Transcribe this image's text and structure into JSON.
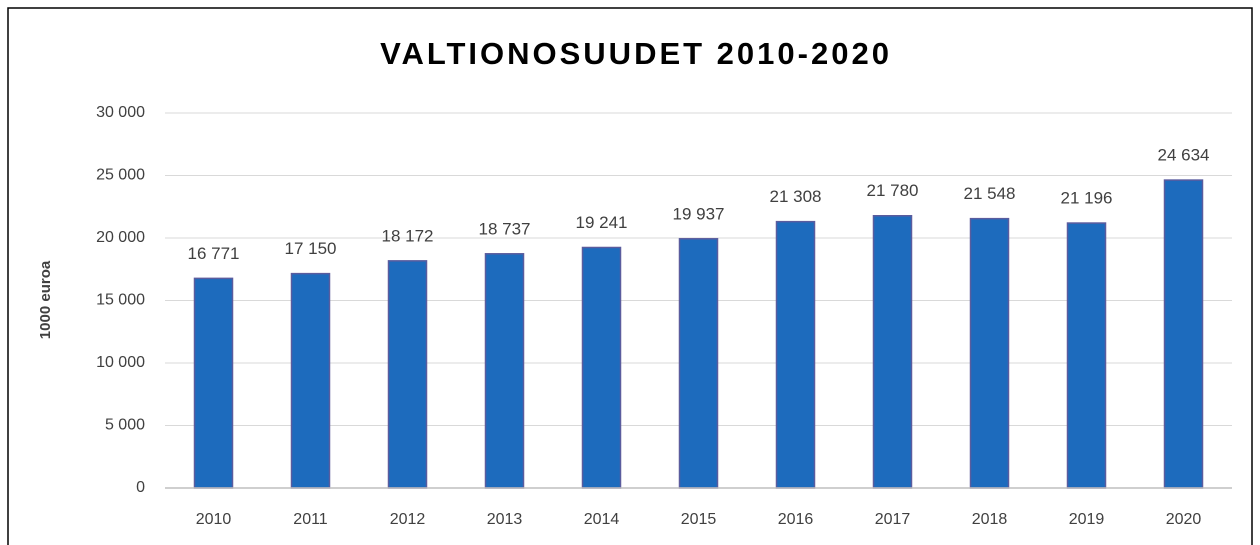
{
  "chart_data": {
    "type": "bar",
    "title": "VALTIONOSUUDET 2010-2020",
    "y_axis_label": "1000 euroa",
    "categories": [
      "2010",
      "2011",
      "2012",
      "2013",
      "2014",
      "2015",
      "2016",
      "2017",
      "2018",
      "2019",
      "2020"
    ],
    "values": [
      16771,
      17150,
      18172,
      18737,
      19241,
      19937,
      21308,
      21780,
      21548,
      21196,
      24634
    ],
    "value_labels": [
      "16 771",
      "17 150",
      "18 172",
      "18 737",
      "19 241",
      "19 937",
      "21 308",
      "21 780",
      "21 548",
      "21 196",
      "24 634"
    ],
    "color": "#1d6bbd",
    "ylim": [
      0,
      30000
    ],
    "yticks": [
      0,
      {
        "value": 5000,
        "label": "5 000"
      },
      {
        "value": 10000,
        "label": "10 000"
      },
      {
        "value": 15000,
        "label": "15 000"
      },
      {
        "value": 20000,
        "label": "20 000"
      },
      {
        "value": 25000,
        "label": "25 000"
      },
      {
        "value": 30000,
        "label": "30 000"
      }
    ],
    "grid": true
  }
}
